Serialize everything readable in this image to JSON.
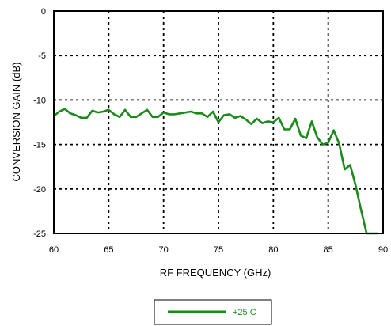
{
  "chart_data": {
    "type": "line",
    "title": "",
    "xlabel": "RF FREQUENCY (GHz)",
    "ylabel": "CONVERSION GAIN (dB)",
    "xlim": [
      60,
      90
    ],
    "ylim": [
      -25,
      0
    ],
    "xticks": [
      60,
      65,
      70,
      75,
      80,
      85,
      90
    ],
    "yticks": [
      0,
      -5,
      -10,
      -15,
      -20,
      -25
    ],
    "grid": true,
    "legend_position": "bottom-center",
    "series": [
      {
        "name": "+25 C",
        "color": "#1a8a1a",
        "x": [
          60,
          60.5,
          61,
          61.5,
          62,
          62.5,
          63,
          63.5,
          64,
          64.5,
          65,
          65.5,
          66,
          66.5,
          67,
          67.5,
          68,
          68.5,
          69,
          69.5,
          70,
          70.5,
          71,
          71.5,
          72,
          72.5,
          73,
          73.5,
          74,
          74.5,
          75,
          75.5,
          76,
          76.5,
          77,
          77.5,
          78,
          78.5,
          79,
          79.5,
          80,
          80.5,
          81,
          81.5,
          82,
          82.5,
          83,
          83.5,
          84,
          84.5,
          85,
          85.5,
          86,
          86.5,
          87,
          87.5,
          88,
          88.5,
          89,
          89.5
        ],
        "y": [
          -11.8,
          -11.3,
          -11.0,
          -11.5,
          -11.7,
          -12.0,
          -12.0,
          -11.2,
          -11.4,
          -11.3,
          -11.1,
          -11.6,
          -11.9,
          -11.1,
          -11.9,
          -11.9,
          -11.5,
          -11.1,
          -11.9,
          -11.9,
          -11.4,
          -11.6,
          -11.6,
          -11.5,
          -11.4,
          -11.3,
          -11.5,
          -11.5,
          -11.9,
          -11.3,
          -12.5,
          -11.7,
          -11.6,
          -12.0,
          -11.8,
          -12.2,
          -12.7,
          -12.1,
          -12.6,
          -12.4,
          -12.5,
          -12.0,
          -13.3,
          -13.3,
          -12.1,
          -14.0,
          -14.3,
          -12.4,
          -14.2,
          -15.0,
          -14.8,
          -13.4,
          -14.9,
          -17.8,
          -17.3,
          -19.6,
          -22.4,
          -25.0,
          -25.0,
          -25.0
        ]
      }
    ]
  }
}
